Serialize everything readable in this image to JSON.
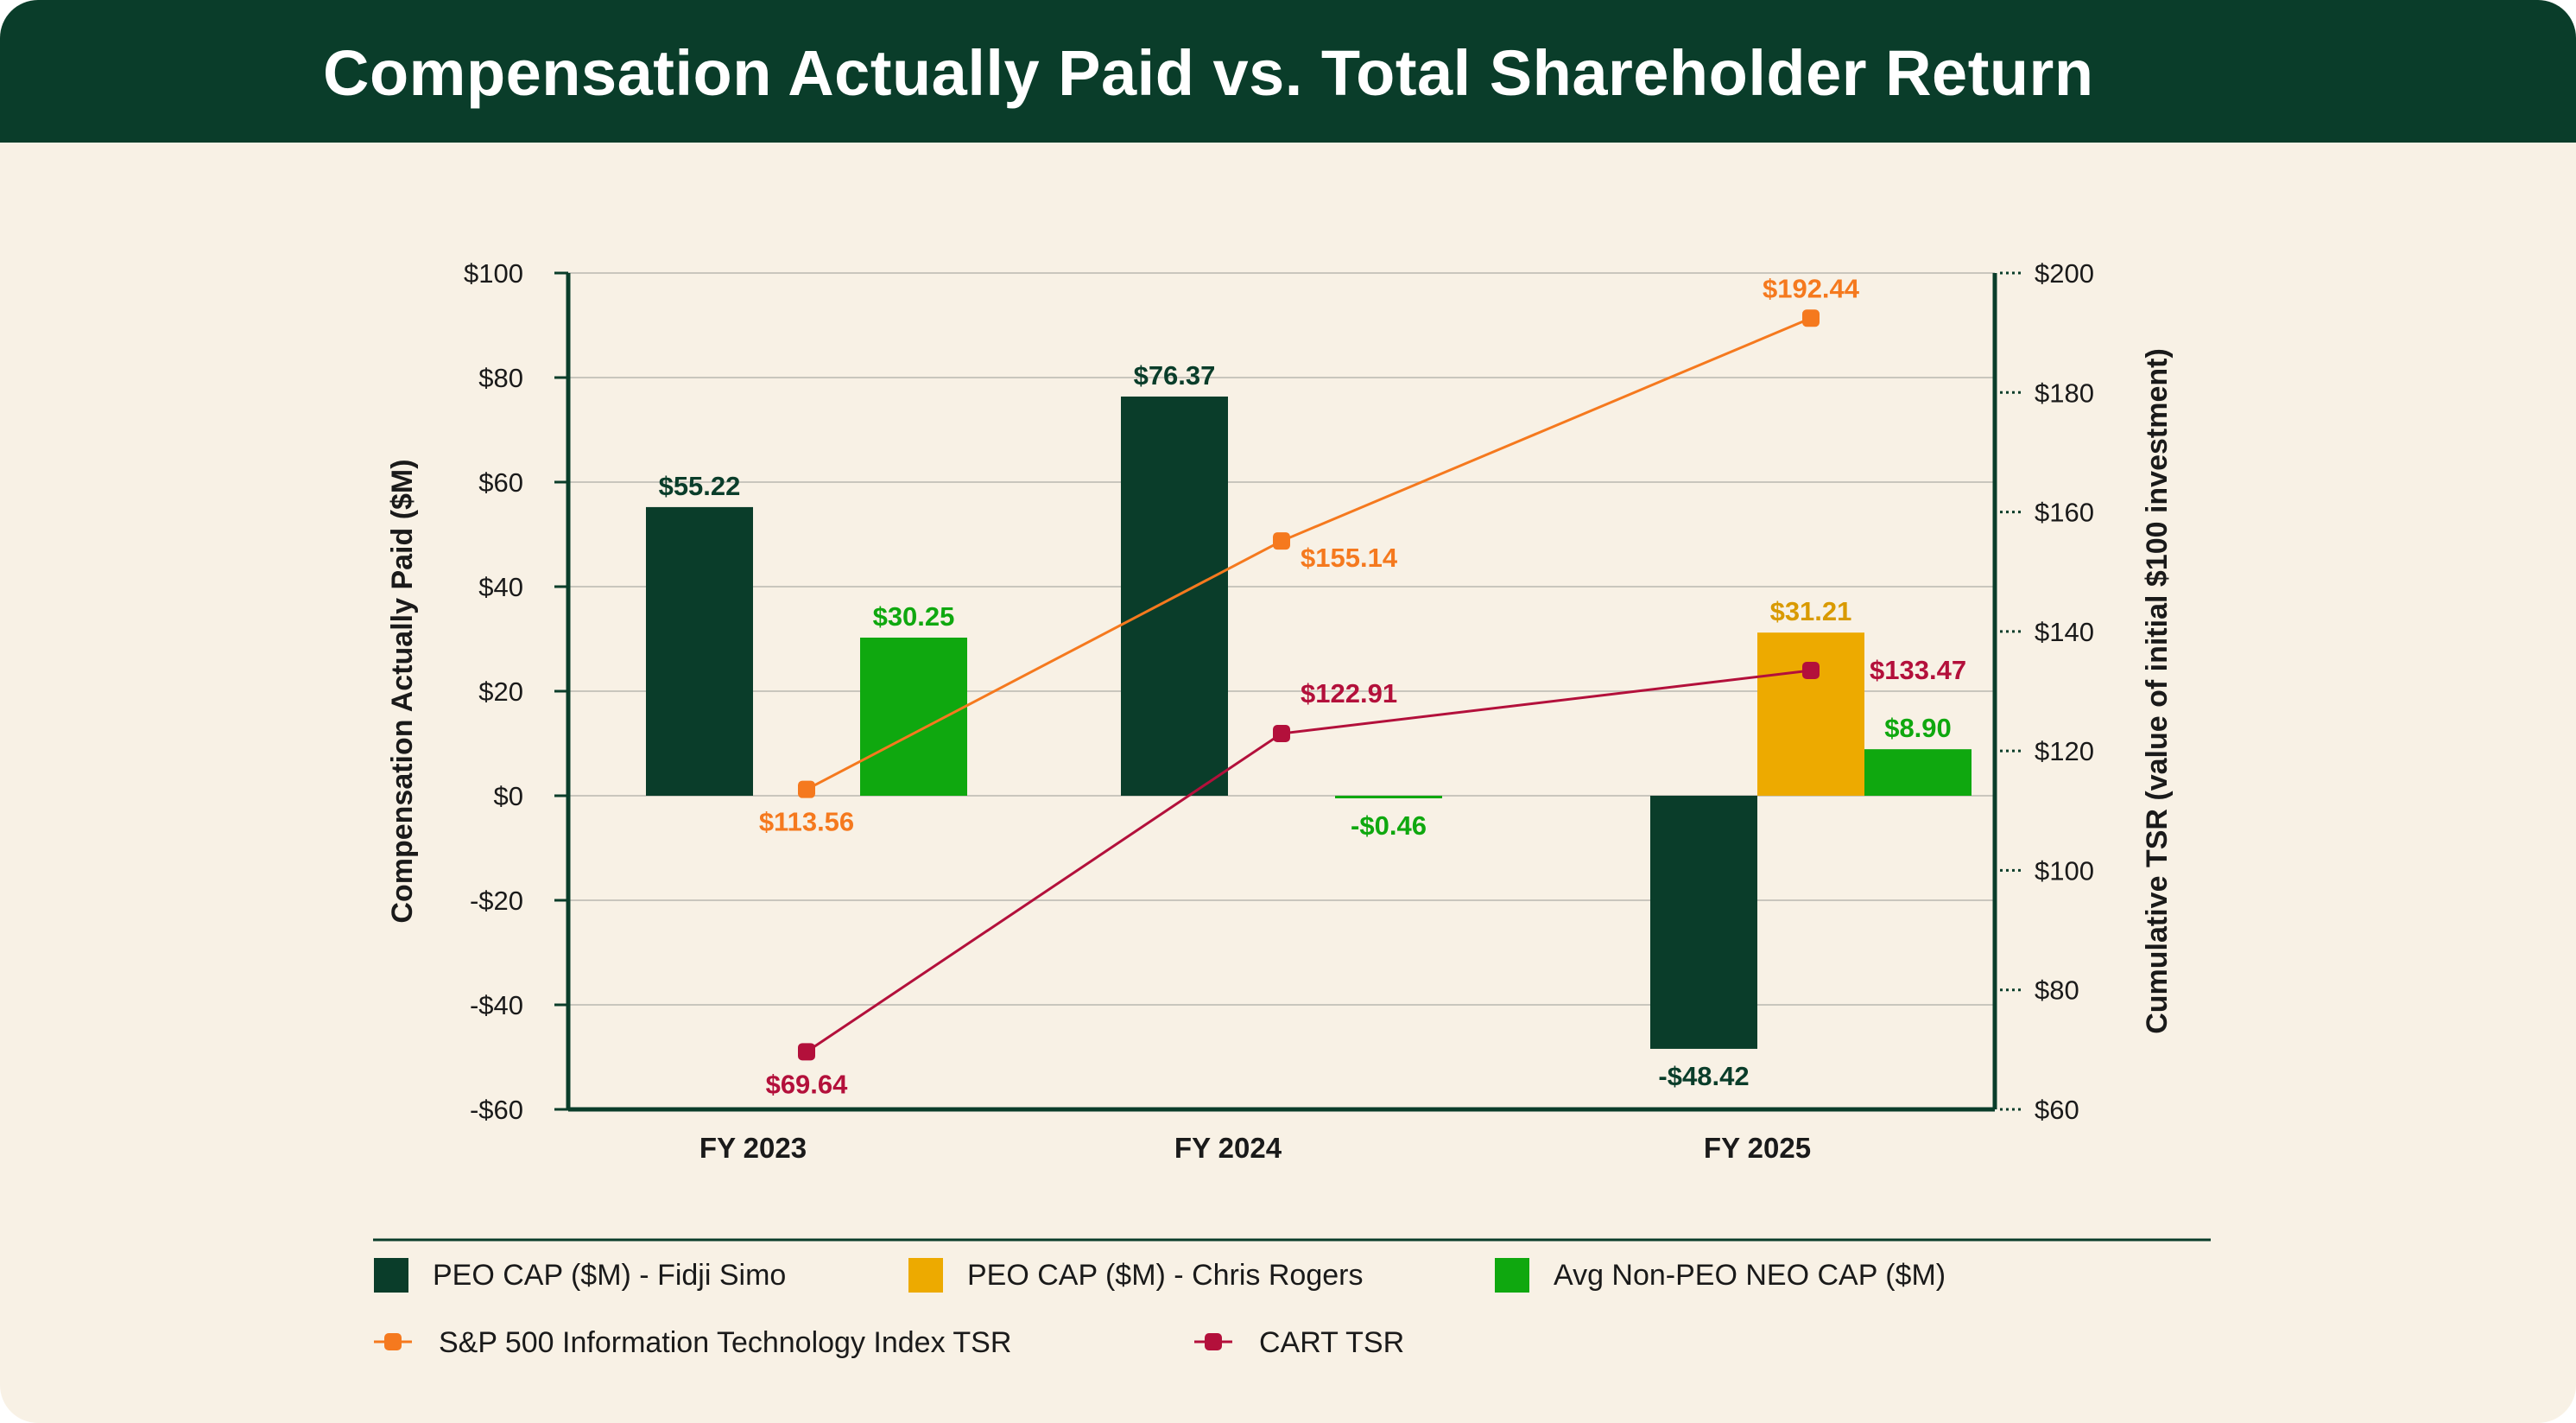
{
  "title": "Compensation Actually Paid vs. Total Shareholder Return",
  "colors": {
    "header_bg": "#0a3d2a",
    "background": "#f8f1e5",
    "simo": "#0a3d2a",
    "rogers": "#edaa00",
    "neo": "#0fa80f",
    "sp500": "#f5791e",
    "cart": "#b3103b",
    "axis": "#0a3d2a"
  },
  "chart_data": {
    "type": "bar",
    "categories": [
      "FY 2023",
      "FY 2024",
      "FY 2025"
    ],
    "ylabel": "Compensation Actually Paid ($M)",
    "y2label": "Cumulative TSR (value of initial $100 investment)",
    "ylim": [
      -60,
      100
    ],
    "y2lim": [
      60,
      200
    ],
    "y_ticks": [
      {
        "value": -60,
        "label": "-$60"
      },
      {
        "value": -40,
        "label": "-$40"
      },
      {
        "value": -20,
        "label": "-$20"
      },
      {
        "value": 0,
        "label": "$0"
      },
      {
        "value": 20,
        "label": "$20"
      },
      {
        "value": 40,
        "label": "$40"
      },
      {
        "value": 60,
        "label": "$60"
      },
      {
        "value": 80,
        "label": "$80"
      },
      {
        "value": 100,
        "label": "$100"
      }
    ],
    "y2_ticks": [
      {
        "value": 60,
        "label": "$60"
      },
      {
        "value": 80,
        "label": "$80"
      },
      {
        "value": 100,
        "label": "$100"
      },
      {
        "value": 120,
        "label": "$120"
      },
      {
        "value": 140,
        "label": "$140"
      },
      {
        "value": 160,
        "label": "$160"
      },
      {
        "value": 180,
        "label": "$180"
      },
      {
        "value": 200,
        "label": "$200"
      }
    ],
    "grid": true,
    "bar_series": [
      {
        "name": "PEO CAP ($M) - Fidji Simo",
        "color": "#0a3d2a",
        "values": [
          55.22,
          76.37,
          -48.42
        ],
        "labels": [
          "$55.22",
          "$76.37",
          "-$48.42"
        ]
      },
      {
        "name": "PEO CAP ($M) - Chris Rogers",
        "color": "#edaa00",
        "values": [
          null,
          null,
          31.21
        ],
        "labels": [
          "",
          "",
          "$31.21"
        ]
      },
      {
        "name": "Avg Non-PEO NEO CAP ($M)",
        "color": "#0fa80f",
        "values": [
          30.25,
          -0.46,
          8.9
        ],
        "labels": [
          "$30.25",
          "-$0.46",
          "$8.90"
        ]
      }
    ],
    "line_series": [
      {
        "name": "S&P 500 Information Technology Index TSR",
        "color": "#f5791e",
        "axis": "right",
        "values": [
          113.56,
          155.14,
          192.44
        ],
        "labels": [
          "$113.56",
          "$155.14",
          "$192.44"
        ]
      },
      {
        "name": "CART TSR",
        "color": "#b3103b",
        "axis": "right",
        "values": [
          69.64,
          122.91,
          133.47
        ],
        "labels": [
          "$69.64",
          "$122.91",
          "$133.47"
        ]
      }
    ],
    "legend_position": "bottom"
  }
}
